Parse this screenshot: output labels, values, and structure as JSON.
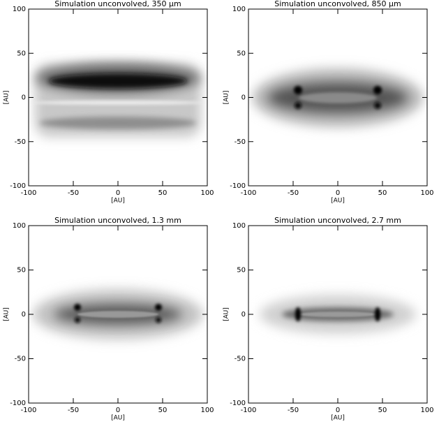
{
  "chart_data": [
    {
      "type": "image",
      "title": "Simulation unconvolved, 350 μm",
      "xlabel": "[AU]",
      "ylabel": "[AU]",
      "xlim": [
        -100,
        100
      ],
      "ylim": [
        -100,
        100
      ],
      "xticks": [
        -100,
        -50,
        0,
        50,
        100
      ],
      "yticks": [
        -100,
        -50,
        0,
        50,
        100
      ]
    },
    {
      "type": "image",
      "title": "Simulation unconvolved, 850 μm",
      "xlabel": "[AU]",
      "ylabel": "[AU]",
      "xlim": [
        -100,
        100
      ],
      "ylim": [
        -100,
        100
      ],
      "xticks": [
        -100,
        -50,
        0,
        50,
        100
      ],
      "yticks": [
        -100,
        -50,
        0,
        50,
        100
      ]
    },
    {
      "type": "image",
      "title": "Simulation unconvolved, 1.3 mm",
      "xlabel": "[AU]",
      "ylabel": "[AU]",
      "xlim": [
        -100,
        100
      ],
      "ylim": [
        -100,
        100
      ],
      "xticks": [
        -100,
        -50,
        0,
        50,
        100
      ],
      "yticks": [
        -100,
        -50,
        0,
        50,
        100
      ]
    },
    {
      "type": "image",
      "title": "Simulation unconvolved, 2.7 mm",
      "xlabel": "[AU]",
      "ylabel": "[AU]",
      "xlim": [
        -100,
        100
      ],
      "ylim": [
        -100,
        100
      ],
      "xticks": [
        -100,
        -50,
        0,
        50,
        100
      ],
      "yticks": [
        -100,
        -50,
        0,
        50,
        100
      ]
    }
  ]
}
